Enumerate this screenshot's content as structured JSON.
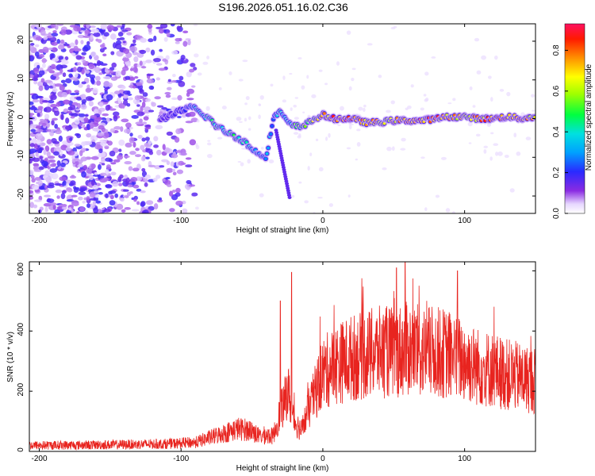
{
  "title": "S196.2026.051.16.02.C36",
  "chart_data": [
    {
      "type": "heatmap",
      "title": "S196.2026.051.16.02.C36",
      "xlabel": "Height of straight line (km)",
      "ylabel": "Frequency (Hz)",
      "xlim": [
        -207,
        150
      ],
      "ylim": [
        -24.5,
        24.5
      ],
      "xticks": [
        -200,
        -100,
        0,
        100
      ],
      "yticks": [
        -20,
        -10,
        0,
        10,
        20
      ],
      "colorbar": {
        "label": "Normalized spectral amplitude",
        "range": [
          0,
          0.93
        ],
        "ticks": [
          "0.0",
          "0.2",
          "0.4",
          "0.6",
          "0.8"
        ],
        "tick_values": [
          0,
          0.2,
          0.4,
          0.6,
          0.8
        ]
      },
      "ridge": {
        "description": "dominant frequency track vs height",
        "x": [
          -115,
          -100,
          -92,
          -85,
          -80,
          -75,
          -70,
          -65,
          -60,
          -55,
          -50,
          -45,
          -40,
          -35,
          -30,
          -27,
          -25,
          -20,
          -15,
          -10,
          -5,
          0,
          5,
          10,
          20,
          30,
          40,
          50,
          60,
          70,
          80,
          90,
          100,
          110,
          120,
          130,
          140,
          150
        ],
        "y": [
          0,
          2,
          3,
          1,
          0,
          -2,
          -3,
          -4,
          -5,
          -6,
          -8,
          -9,
          -10,
          0,
          2,
          0,
          -1,
          -2,
          -2,
          -1,
          0,
          1,
          0,
          0,
          0,
          -1,
          -1,
          -0.5,
          -0.5,
          -0.5,
          0,
          0.5,
          0.5,
          0,
          0,
          0.5,
          0,
          0.5
        ],
        "amplitude": [
          0.15,
          0.2,
          0.35,
          0.45,
          0.5,
          0.5,
          0.45,
          0.5,
          0.5,
          0.45,
          0.4,
          0.35,
          0.35,
          0.3,
          0.45,
          0.35,
          0.35,
          0.55,
          0.6,
          0.6,
          0.7,
          0.75,
          0.85,
          0.9,
          0.9,
          0.8,
          0.75,
          0.75,
          0.8,
          0.85,
          0.85,
          0.8,
          0.75,
          0.8,
          0.85,
          0.85,
          0.8,
          0.75
        ]
      }
    },
    {
      "type": "line",
      "xlabel": "Height of straight line (km)",
      "ylabel": "SNR (10 * v/v)",
      "xlim": [
        -207,
        150
      ],
      "ylim": [
        0,
        630
      ],
      "xticks": [
        -200,
        -100,
        0,
        100
      ],
      "yticks": [
        0,
        200,
        400,
        600
      ],
      "color": "#e8241f",
      "envelope": {
        "description": "approximate mean SNR level along height",
        "x": [
          -207,
          -150,
          -110,
          -90,
          -80,
          -70,
          -60,
          -50,
          -45,
          -40,
          -35,
          -30,
          -27,
          -25,
          -20,
          -15,
          -10,
          -5,
          0,
          10,
          20,
          30,
          40,
          50,
          60,
          70,
          80,
          90,
          100,
          110,
          120,
          130,
          140,
          150
        ],
        "y": [
          20,
          22,
          25,
          30,
          45,
          60,
          75,
          70,
          50,
          55,
          50,
          130,
          160,
          210,
          100,
          70,
          140,
          200,
          260,
          290,
          310,
          320,
          330,
          330,
          340,
          330,
          330,
          320,
          300,
          280,
          270,
          255,
          245,
          235
        ]
      },
      "peaks": {
        "x": [
          -30,
          -22,
          52,
          58,
          95
        ],
        "y": [
          500,
          595,
          610,
          630,
          600
        ]
      }
    }
  ]
}
